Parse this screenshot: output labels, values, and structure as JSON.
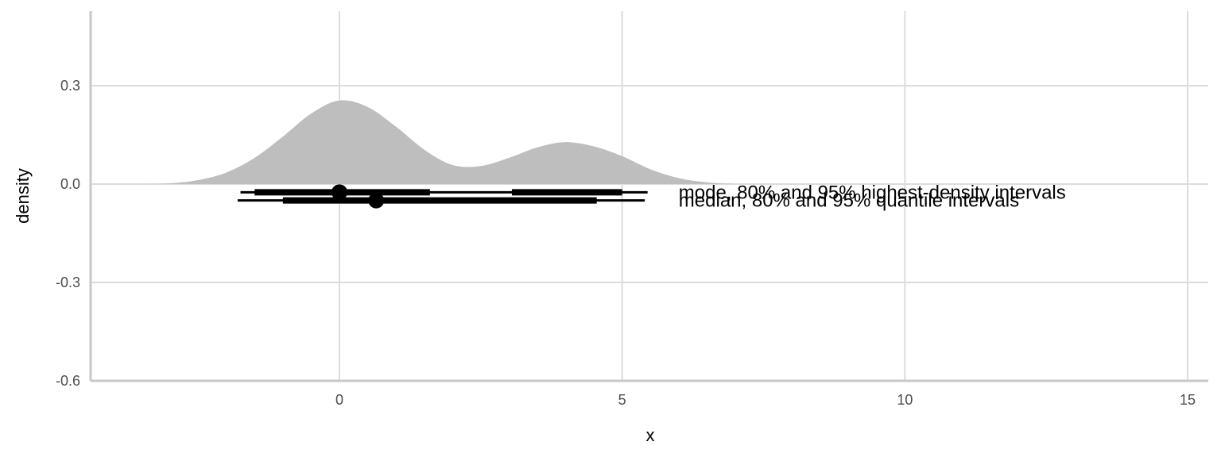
{
  "chart_data": {
    "type": "area",
    "title": "",
    "xlabel": "x",
    "ylabel": "density",
    "xlim": [
      -4.4,
      15.4
    ],
    "ylim": [
      -0.6,
      0.5
    ],
    "x_ticks": [
      0,
      5,
      10,
      15
    ],
    "y_ticks": [
      -0.6,
      -0.3,
      0.0,
      0.3
    ],
    "x_tick_labels": [
      "0",
      "5",
      "10",
      "15"
    ],
    "y_tick_labels": [
      "-0.6",
      "-0.3",
      "0.0",
      "0.3"
    ],
    "grid": true,
    "density": {
      "fill": "#bebebe",
      "x": [
        -3.4,
        -3.0,
        -2.5,
        -2.0,
        -1.5,
        -1.0,
        -0.5,
        0.0,
        0.5,
        1.0,
        1.5,
        2.0,
        2.5,
        3.0,
        3.5,
        4.0,
        4.5,
        5.0,
        5.5,
        6.0,
        6.5,
        7.0
      ],
      "y": [
        0.0,
        0.002,
        0.012,
        0.035,
        0.08,
        0.145,
        0.215,
        0.255,
        0.235,
        0.175,
        0.105,
        0.058,
        0.055,
        0.08,
        0.112,
        0.128,
        0.115,
        0.085,
        0.045,
        0.018,
        0.005,
        0.0
      ]
    },
    "intervals": [
      {
        "label": "mode, 80% and 95% highest-density intervals",
        "y": -0.025,
        "point": 0.0,
        "intervals_80": [
          [
            -1.5,
            1.6
          ],
          [
            3.05,
            5.0
          ]
        ],
        "intervals_95": [
          [
            -1.75,
            5.45
          ]
        ]
      },
      {
        "label": "median, 80% and 95% quantile intervals",
        "y": -0.05,
        "point": 0.65,
        "intervals_80": [
          [
            -1.0,
            4.55
          ]
        ],
        "intervals_95": [
          [
            -1.8,
            5.4
          ]
        ]
      }
    ],
    "annotation_x": 6.0
  }
}
